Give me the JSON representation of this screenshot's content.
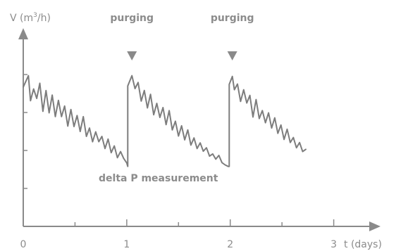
{
  "chart_data": {
    "type": "line",
    "ylabel": {
      "prefix": "V (m",
      "sup": "3",
      "suffix": "/h)"
    },
    "xlabel": "t (days)",
    "x_ticks": [
      "0",
      "1",
      "2",
      "3"
    ],
    "xlim": [
      0,
      3.35
    ],
    "ylim": [
      0,
      5
    ],
    "grid": false,
    "annotations": [
      {
        "text": "purging",
        "x": 1.05
      },
      {
        "text": "purging",
        "x": 2.02
      }
    ],
    "note": "delta P measurement",
    "series": [
      {
        "x": [
          0,
          0.05,
          0.07,
          0.1,
          0.13,
          0.16,
          0.19,
          0.22,
          0.25,
          0.28,
          0.31,
          0.34,
          0.37,
          0.4,
          0.43,
          0.46,
          0.49,
          0.52,
          0.55,
          0.58,
          0.61,
          0.64,
          0.67,
          0.7,
          0.73,
          0.76,
          0.79,
          0.82,
          0.85,
          0.88,
          0.91,
          0.94,
          0.97,
          1.0,
          1.01,
          1.01,
          1.05,
          1.08,
          1.11,
          1.14,
          1.17,
          1.2,
          1.23,
          1.26,
          1.29,
          1.32,
          1.35,
          1.38,
          1.41,
          1.44,
          1.47,
          1.5,
          1.53,
          1.56,
          1.59,
          1.62,
          1.65,
          1.68,
          1.71,
          1.74,
          1.77,
          1.8,
          1.83,
          1.86,
          1.89,
          1.92,
          1.95,
          1.98,
          1.99,
          1.99,
          2.02,
          2.04,
          2.07,
          2.1,
          2.13,
          2.16,
          2.19,
          2.22,
          2.25,
          2.28,
          2.31,
          2.34,
          2.37,
          2.4,
          2.43,
          2.46,
          2.49,
          2.52,
          2.55,
          2.58,
          2.61,
          2.64,
          2.67,
          2.7,
          2.73
        ],
        "y": [
          3.67,
          3.97,
          3.31,
          3.62,
          3.37,
          3.77,
          3.03,
          3.58,
          2.99,
          3.46,
          2.89,
          3.32,
          2.89,
          3.17,
          2.64,
          3.08,
          2.63,
          2.92,
          2.5,
          2.89,
          2.37,
          2.59,
          2.23,
          2.49,
          2.23,
          2.37,
          2.05,
          2.3,
          1.94,
          2.12,
          1.81,
          1.97,
          1.79,
          1.67,
          1.58,
          3.7,
          3.97,
          3.63,
          3.79,
          3.3,
          3.58,
          3.12,
          3.48,
          2.94,
          3.24,
          2.87,
          3.13,
          2.68,
          3.05,
          2.54,
          2.77,
          2.38,
          2.65,
          2.28,
          2.54,
          2.14,
          2.33,
          2.05,
          2.2,
          1.98,
          2.07,
          1.85,
          1.91,
          1.77,
          1.87,
          1.68,
          1.62,
          1.58,
          1.58,
          3.74,
          3.95,
          3.6,
          3.75,
          3.29,
          3.6,
          3.25,
          3.45,
          2.88,
          3.34,
          2.84,
          3.05,
          2.73,
          2.99,
          2.59,
          2.86,
          2.45,
          2.67,
          2.29,
          2.56,
          2.21,
          2.34,
          2.07,
          2.21,
          1.97,
          2.03
        ]
      }
    ]
  }
}
